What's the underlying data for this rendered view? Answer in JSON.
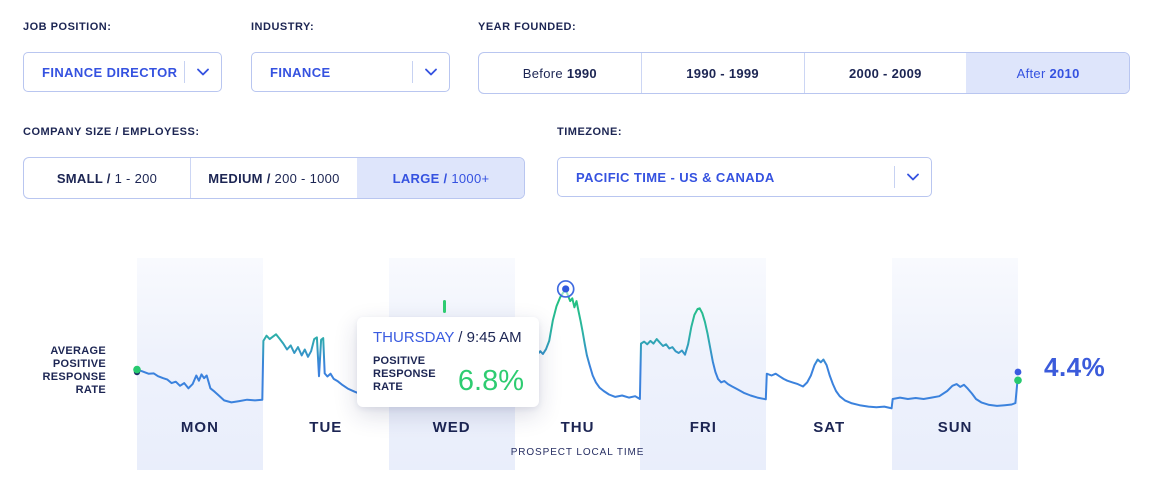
{
  "filters": {
    "job_position": {
      "label": "JOB POSITION:",
      "value": "FINANCE DIRECTOR"
    },
    "industry": {
      "label": "INDUSTRY:",
      "value": "FINANCE"
    },
    "year_founded": {
      "label": "YEAR FOUNDED:",
      "options": [
        {
          "a": "Before ",
          "b": "1990",
          "selected": false
        },
        {
          "a": "",
          "b": "1990 - 1999",
          "selected": false
        },
        {
          "a": "",
          "b": "2000 - 2009",
          "selected": false
        },
        {
          "a": "After ",
          "b": "2010",
          "selected": true
        }
      ]
    },
    "company_size": {
      "label": "COMPANY SIZE / EMPLOYESS:",
      "options": [
        {
          "a": "SMALL / ",
          "b": "1 - 200",
          "selected": false
        },
        {
          "a": "MEDIUM / ",
          "b": "200 - 1000",
          "selected": false
        },
        {
          "a": "LARGE / ",
          "b": "1000+",
          "selected": true
        }
      ]
    },
    "timezone": {
      "label": "TIMEZONE:",
      "value": "PACIFIC TIME - US & CANADA"
    }
  },
  "colors": {
    "accent_blue": "#3552e0",
    "navy": "#1c2553",
    "green": "#2ecc71",
    "chart_blue": "#3b82dd",
    "chart_teal": "#2cb3a4",
    "selected_bg": "#dee5fb",
    "column_fill": "#e9eefb",
    "avg_line_blue": "#4164e3"
  },
  "chart_data": {
    "type": "line",
    "title": "AVERAGE POSITIVE RESPONSE RATE",
    "y_label_multiline": "AVERAGE\nPOSITIVE\nRESPONSE\nRATE",
    "x_axis": {
      "categories": [
        "MON",
        "TUE",
        "WED",
        "THU",
        "FRI",
        "SAT",
        "SUN"
      ],
      "label": "PROSPECT LOCAL TIME",
      "unit": "hours_since_week_start",
      "range": [
        0,
        168
      ]
    },
    "y_axis": {
      "unit": "%",
      "ticks_visible": false
    },
    "shaded_days": [
      "MON",
      "WED",
      "FRI",
      "SUN"
    ],
    "average_line": {
      "value_pct": 4.4,
      "label": "4.4%"
    },
    "highlight_point": {
      "day": "THURSDAY",
      "day_index": 3,
      "hours": 9.75,
      "time": "9:45 AM",
      "value_pct": 6.8
    },
    "tooltip": {
      "day": "THURSDAY",
      "rest": " / 9:45 AM",
      "metric_label": "POSITIVE\nRESPONSE RATE",
      "value": "6.8%"
    },
    "series": [
      {
        "name": "positive_response_rate_pct",
        "points": [
          [
            0,
            4.47
          ],
          [
            1,
            4.42
          ],
          [
            2.2,
            4.35
          ],
          [
            3.2,
            4.36
          ],
          [
            4,
            4.28
          ],
          [
            5,
            4.22
          ],
          [
            5.8,
            4.18
          ],
          [
            6.6,
            4.08
          ],
          [
            7.4,
            4.12
          ],
          [
            8.2,
            4.0
          ],
          [
            9,
            4.08
          ],
          [
            9.8,
            3.93
          ],
          [
            10.6,
            4.05
          ],
          [
            11.3,
            4.3
          ],
          [
            11.8,
            4.15
          ],
          [
            12.3,
            4.33
          ],
          [
            12.8,
            4.22
          ],
          [
            13.3,
            4.3
          ],
          [
            14,
            3.93
          ],
          [
            14.8,
            3.83
          ],
          [
            15.6,
            3.72
          ],
          [
            16.6,
            3.58
          ],
          [
            18,
            3.52
          ],
          [
            19.5,
            3.56
          ],
          [
            21,
            3.6
          ],
          [
            22.5,
            3.58
          ],
          [
            23.9,
            3.6
          ],
          [
            24.1,
            5.3
          ],
          [
            24.7,
            5.45
          ],
          [
            25.3,
            5.35
          ],
          [
            25.9,
            5.42
          ],
          [
            26.5,
            5.49
          ],
          [
            27.2,
            5.36
          ],
          [
            27.9,
            5.22
          ],
          [
            28.6,
            5.05
          ],
          [
            29.3,
            5.17
          ],
          [
            30,
            4.95
          ],
          [
            30.7,
            5.12
          ],
          [
            31.4,
            4.88
          ],
          [
            32,
            5.05
          ],
          [
            32.6,
            4.84
          ],
          [
            33.2,
            5.0
          ],
          [
            33.8,
            5.35
          ],
          [
            34.3,
            5.4
          ],
          [
            34.7,
            4.28
          ],
          [
            35.1,
            5.33
          ],
          [
            35.5,
            5.38
          ],
          [
            35.8,
            4.36
          ],
          [
            36.3,
            4.27
          ],
          [
            36.9,
            4.35
          ],
          [
            37.5,
            4.2
          ],
          [
            38.3,
            4.13
          ],
          [
            39.2,
            4.02
          ],
          [
            40.2,
            3.92
          ],
          [
            41.5,
            3.83
          ],
          [
            43,
            3.74
          ],
          [
            44.5,
            3.68
          ],
          [
            46,
            3.63
          ],
          [
            47.9,
            3.59
          ],
          [
            50,
            3.56
          ],
          [
            52,
            3.54
          ],
          [
            54,
            3.57
          ],
          [
            56,
            3.53
          ],
          [
            58,
            3.56
          ],
          [
            60,
            3.54
          ],
          [
            62,
            3.57
          ],
          [
            64,
            3.53
          ],
          [
            66,
            3.56
          ],
          [
            68,
            3.54
          ],
          [
            70,
            3.57
          ],
          [
            71.9,
            3.6
          ],
          [
            72.5,
            3.66
          ],
          [
            73.5,
            3.85
          ],
          [
            74.5,
            4.2
          ],
          [
            75.5,
            4.6
          ],
          [
            76.3,
            4.9
          ],
          [
            76.9,
            5.0
          ],
          [
            77.4,
            4.92
          ],
          [
            78,
            5.06
          ],
          [
            78.6,
            5.3
          ],
          [
            79.3,
            5.9
          ],
          [
            80,
            6.3
          ],
          [
            80.7,
            6.56
          ],
          [
            81.3,
            6.7
          ],
          [
            81.75,
            6.8
          ],
          [
            82.2,
            6.6
          ],
          [
            82.6,
            6.45
          ],
          [
            83,
            6.53
          ],
          [
            83.4,
            6.27
          ],
          [
            83.8,
            6.45
          ],
          [
            84.2,
            6.16
          ],
          [
            84.6,
            5.87
          ],
          [
            85,
            5.55
          ],
          [
            85.4,
            5.2
          ],
          [
            85.8,
            4.88
          ],
          [
            86.3,
            4.6
          ],
          [
            86.9,
            4.3
          ],
          [
            87.5,
            4.1
          ],
          [
            88.2,
            3.95
          ],
          [
            89,
            3.85
          ],
          [
            90,
            3.75
          ],
          [
            91.2,
            3.68
          ],
          [
            92.5,
            3.72
          ],
          [
            93.8,
            3.66
          ],
          [
            95,
            3.7
          ],
          [
            95.9,
            3.62
          ],
          [
            96.1,
            5.22
          ],
          [
            96.7,
            5.28
          ],
          [
            97.3,
            5.2
          ],
          [
            97.9,
            5.3
          ],
          [
            98.5,
            5.22
          ],
          [
            99.1,
            5.35
          ],
          [
            99.7,
            5.25
          ],
          [
            100.3,
            5.15
          ],
          [
            100.9,
            5.2
          ],
          [
            101.5,
            5.08
          ],
          [
            102.1,
            5.12
          ],
          [
            102.7,
            5.0
          ],
          [
            103.3,
            4.95
          ],
          [
            103.9,
            5.02
          ],
          [
            104.5,
            4.9
          ],
          [
            105.1,
            5.2
          ],
          [
            105.7,
            5.7
          ],
          [
            106.3,
            6.05
          ],
          [
            106.9,
            6.22
          ],
          [
            107.3,
            6.24
          ],
          [
            107.8,
            6.1
          ],
          [
            108.3,
            5.85
          ],
          [
            108.8,
            5.5
          ],
          [
            109.3,
            5.1
          ],
          [
            109.8,
            4.7
          ],
          [
            110.3,
            4.4
          ],
          [
            110.8,
            4.2
          ],
          [
            111.4,
            4.1
          ],
          [
            112,
            4.14
          ],
          [
            112.7,
            4.05
          ],
          [
            113.5,
            3.98
          ],
          [
            114.5,
            3.9
          ],
          [
            115.7,
            3.8
          ],
          [
            117,
            3.72
          ],
          [
            118.3,
            3.66
          ],
          [
            119.9,
            3.61
          ],
          [
            120.1,
            4.35
          ],
          [
            121,
            4.3
          ],
          [
            121.8,
            4.35
          ],
          [
            122.5,
            4.28
          ],
          [
            123.3,
            4.2
          ],
          [
            124,
            4.15
          ],
          [
            125,
            4.1
          ],
          [
            126,
            4.05
          ],
          [
            127,
            3.98
          ],
          [
            127.8,
            4.1
          ],
          [
            128.5,
            4.3
          ],
          [
            129.2,
            4.6
          ],
          [
            129.8,
            4.76
          ],
          [
            130.4,
            4.68
          ],
          [
            130.9,
            4.76
          ],
          [
            131.5,
            4.6
          ],
          [
            132.1,
            4.3
          ],
          [
            132.7,
            4.05
          ],
          [
            133.3,
            3.85
          ],
          [
            134,
            3.7
          ],
          [
            135,
            3.58
          ],
          [
            136.2,
            3.5
          ],
          [
            137.8,
            3.44
          ],
          [
            139.5,
            3.4
          ],
          [
            141,
            3.38
          ],
          [
            142.5,
            3.4
          ],
          [
            143.9,
            3.35
          ],
          [
            144.1,
            3.62
          ],
          [
            145.5,
            3.66
          ],
          [
            147,
            3.62
          ],
          [
            148.5,
            3.65
          ],
          [
            150,
            3.62
          ],
          [
            151.5,
            3.66
          ],
          [
            153,
            3.7
          ],
          [
            154.5,
            3.85
          ],
          [
            155.5,
            4.0
          ],
          [
            156.3,
            4.05
          ],
          [
            157,
            3.97
          ],
          [
            157.7,
            4.03
          ],
          [
            158.4,
            3.92
          ],
          [
            159.2,
            3.78
          ],
          [
            160,
            3.62
          ],
          [
            161,
            3.52
          ],
          [
            162.5,
            3.45
          ],
          [
            164,
            3.42
          ],
          [
            165.5,
            3.44
          ],
          [
            166.8,
            3.46
          ],
          [
            167.5,
            3.5
          ],
          [
            167.9,
            4.16
          ]
        ]
      }
    ]
  }
}
